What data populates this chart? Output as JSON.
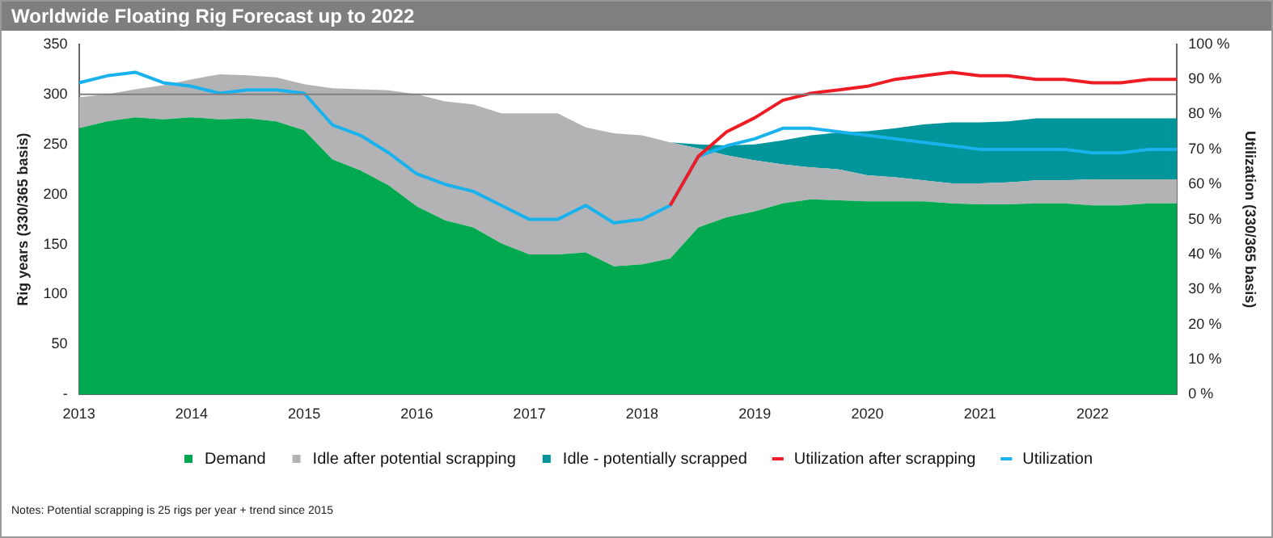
{
  "chart_data": {
    "type": "area",
    "title": "Worldwide Floating Rig Forecast up to 2022",
    "ylabel": "Rig years (330/365 basis)",
    "y2label": "Utilization (330/365 basis)",
    "annotations": [
      "Notes: Potential scrapping is 25 rigs per year + trend since 2015"
    ],
    "x": [
      2013,
      2013.25,
      2013.5,
      2013.75,
      2014,
      2014.25,
      2014.5,
      2014.75,
      2015,
      2015.25,
      2015.5,
      2015.75,
      2016,
      2016.25,
      2016.5,
      2016.75,
      2017,
      2017.25,
      2017.5,
      2017.75,
      2018,
      2018.25,
      2018.5,
      2018.75,
      2019,
      2019.25,
      2019.5,
      2019.75,
      2020,
      2020.25,
      2020.5,
      2020.75,
      2021,
      2021.25,
      2021.5,
      2021.75,
      2022,
      2022.25,
      2022.5,
      2022.75
    ],
    "stacked": true,
    "series": [
      {
        "name": "Demand",
        "color": "#00a84f",
        "values": [
          266,
          273,
          277,
          275,
          277,
          275,
          276,
          273,
          264,
          235,
          224,
          209,
          188,
          174,
          167,
          151,
          140,
          140,
          142,
          128,
          130,
          136,
          167,
          177,
          183,
          191,
          195,
          194,
          193,
          193,
          193,
          191,
          190,
          190,
          191,
          191,
          189,
          189,
          191,
          191
        ]
      },
      {
        "name": "Idle after potential scrapping",
        "color": "#b3b3b6",
        "values": [
          31,
          27,
          28,
          34,
          38,
          45,
          43,
          44,
          46,
          71,
          81,
          95,
          112,
          119,
          123,
          130,
          141,
          141,
          125,
          133,
          129,
          116,
          79,
          62,
          51,
          39,
          32,
          31,
          26,
          24,
          21,
          20,
          21,
          22,
          23,
          23,
          26,
          26,
          24,
          24
        ]
      },
      {
        "name": "Idle - potentially scrapped",
        "color": "#00959a",
        "values": [
          null,
          null,
          null,
          null,
          null,
          null,
          null,
          null,
          null,
          null,
          null,
          null,
          null,
          null,
          null,
          null,
          null,
          null,
          null,
          null,
          null,
          0,
          4,
          10,
          16,
          24,
          32,
          37,
          44,
          49,
          56,
          61,
          61,
          61,
          62,
          62,
          61,
          61,
          61,
          61
        ]
      },
      {
        "name": "Utilization after scrapping",
        "type": "line",
        "axis": "y2",
        "color": "#ee1c25",
        "values": [
          null,
          null,
          null,
          null,
          null,
          null,
          null,
          null,
          null,
          null,
          null,
          null,
          null,
          null,
          null,
          null,
          null,
          null,
          null,
          null,
          null,
          54,
          68,
          75,
          79,
          84,
          86,
          87,
          88,
          90,
          91,
          92,
          91,
          91,
          90,
          90,
          89,
          89,
          90,
          90
        ]
      },
      {
        "name": "Utilization",
        "type": "line",
        "axis": "y2",
        "color": "#1ab2ec",
        "values": [
          89,
          91,
          92,
          89,
          88,
          86,
          87,
          87,
          86,
          77,
          74,
          69,
          63,
          60,
          58,
          54,
          50,
          50,
          54,
          49,
          50,
          54,
          68,
          71,
          73,
          76,
          76,
          75,
          74,
          73,
          72,
          71,
          70,
          70,
          70,
          70,
          69,
          69,
          70,
          70
        ]
      }
    ],
    "xlim": [
      2013,
      2022.75
    ],
    "xticks": [
      2013,
      2014,
      2015,
      2016,
      2017,
      2018,
      2019,
      2020,
      2021,
      2022
    ],
    "ylim": [
      0,
      350
    ],
    "yticks": [
      {
        "value": 0,
        "label": "-"
      },
      50,
      100,
      150,
      200,
      250,
      300,
      350
    ],
    "y2lim": [
      0,
      100
    ],
    "y2ticks": [
      {
        "value": 0,
        "label": "0 %"
      },
      {
        "value": 10,
        "label": "10 %"
      },
      {
        "value": 20,
        "label": "20 %"
      },
      {
        "value": 30,
        "label": "30 %"
      },
      {
        "value": 40,
        "label": "40 %"
      },
      {
        "value": 50,
        "label": "50 %"
      },
      {
        "value": 60,
        "label": "60 %"
      },
      {
        "value": 70,
        "label": "70 %"
      },
      {
        "value": 80,
        "label": "80 %"
      },
      {
        "value": 90,
        "label": "90 %"
      },
      {
        "value": 100,
        "label": "100 %"
      }
    ],
    "ref_lines": [
      {
        "axis": "y",
        "value": 300,
        "label": null,
        "color": "#7f7f7f"
      }
    ],
    "grid": false,
    "legend": "bottom",
    "marker": "none",
    "line_style": "solid"
  }
}
